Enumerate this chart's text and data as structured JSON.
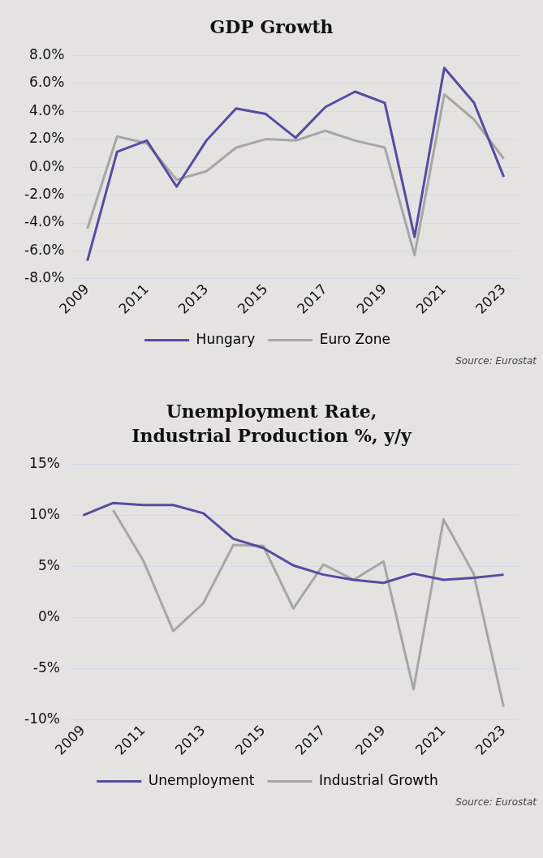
{
  "chart_data": [
    {
      "type": "line",
      "title": "GDP Growth",
      "categories": [
        "2009",
        null,
        "2011",
        null,
        "2013",
        null,
        "2015",
        null,
        "2017",
        null,
        "2019",
        null,
        "2021",
        null,
        "2023"
      ],
      "series": [
        {
          "name": "Hungary",
          "color": "#574ba0",
          "values": [
            -6.7,
            1.1,
            1.9,
            -1.4,
            1.9,
            4.2,
            3.8,
            2.1,
            4.3,
            5.4,
            4.6,
            -5.0,
            7.1,
            4.6,
            -0.7
          ]
        },
        {
          "name": "Euro Zone",
          "color": "#a6a6a6",
          "values": [
            -4.4,
            2.2,
            1.7,
            -0.9,
            -0.3,
            1.4,
            2.0,
            1.9,
            2.6,
            1.9,
            1.4,
            -6.3,
            5.2,
            3.4,
            0.6
          ]
        }
      ],
      "ylim": [
        -8,
        8
      ],
      "yticks": [
        {
          "value": -8,
          "label": "-8.0%"
        },
        {
          "value": -6,
          "label": "-6.0%"
        },
        {
          "value": -4,
          "label": "-4.0%"
        },
        {
          "value": -2,
          "label": "-2.0%"
        },
        {
          "value": 0,
          "label": "0.0%"
        },
        {
          "value": 2,
          "label": "2.0%"
        },
        {
          "value": 4,
          "label": "4.0%"
        },
        {
          "value": 6,
          "label": "6.0%"
        },
        {
          "value": 8,
          "label": "8.0%"
        }
      ],
      "grid": "y",
      "legend": "bottom",
      "marker": "none",
      "annotations": [
        "Source: Eurostat"
      ]
    },
    {
      "type": "line",
      "title": "Unemployment Rate, Industrial Production %, y/y",
      "categories": [
        "2009",
        null,
        "2011",
        null,
        "2013",
        null,
        "2015",
        null,
        "2017",
        null,
        "2019",
        null,
        "2021",
        null,
        "2023"
      ],
      "series": [
        {
          "name": "Unemployment",
          "color": "#574ba0",
          "values": [
            10.0,
            11.2,
            11.0,
            11.0,
            10.2,
            7.7,
            6.8,
            5.1,
            4.2,
            3.7,
            3.4,
            4.3,
            3.7,
            3.9,
            4.2
          ]
        },
        {
          "name": "Industrial Growth",
          "color": "#a6a6a6",
          "values": [
            null,
            10.5,
            5.6,
            -1.3,
            1.4,
            7.1,
            7.0,
            0.9,
            5.2,
            3.7,
            5.5,
            -7.0,
            9.6,
            4.3,
            -8.7
          ]
        }
      ],
      "ylim": [
        -10,
        15
      ],
      "yticks": [
        {
          "value": -10,
          "label": "-10%"
        },
        {
          "value": -5,
          "label": "-5%"
        },
        {
          "value": 0,
          "label": "0%"
        },
        {
          "value": 5,
          "label": "5%"
        },
        {
          "value": 10,
          "label": "10%"
        },
        {
          "value": 15,
          "label": "15%"
        }
      ],
      "grid": "y",
      "legend": "bottom",
      "marker": "none",
      "annotations": [
        "Source: Eurostat"
      ]
    }
  ]
}
